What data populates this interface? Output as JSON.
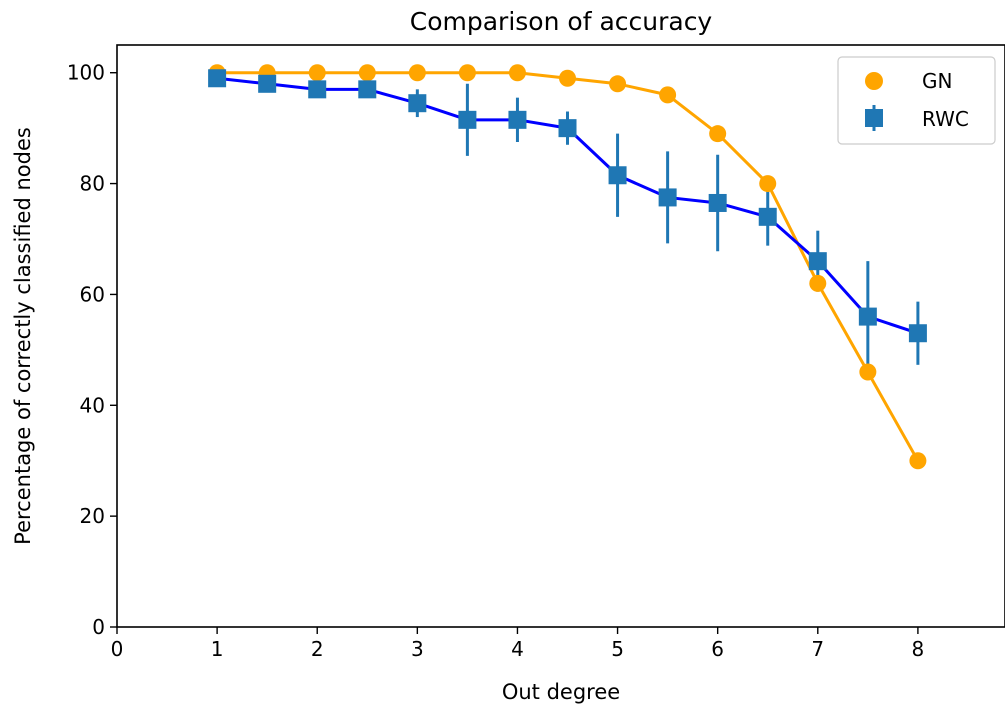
{
  "chart_data": {
    "type": "line",
    "title": "Comparison of accuracy",
    "xlabel": "Out degree",
    "ylabel": "Percentage of correctly classified nodes",
    "xlim": [
      0,
      8.87
    ],
    "ylim": [
      0,
      105
    ],
    "xticks": [
      0,
      1,
      2,
      3,
      4,
      5,
      6,
      7,
      8
    ],
    "yticks": [
      0,
      20,
      40,
      60,
      80,
      100
    ],
    "grid": false,
    "legend_position": "top-right",
    "x": [
      1,
      1.5,
      2,
      2.5,
      3,
      3.5,
      4,
      4.5,
      5,
      5.5,
      6,
      6.5,
      7,
      7.5,
      8
    ],
    "series": [
      {
        "name": "GN",
        "marker": "circle",
        "marker_color": "#ffa500",
        "line_color": "#ffa500",
        "values": [
          100,
          100,
          100,
          100,
          100,
          100,
          100,
          99,
          98,
          96,
          89,
          80,
          62,
          46,
          30
        ]
      },
      {
        "name": "RWC",
        "marker": "square",
        "marker_color": "#1f77b4",
        "line_color": "#0000ff",
        "errorbar_color": "#1f77b4",
        "values": [
          99,
          98,
          97,
          97,
          94.5,
          91.5,
          91.5,
          90,
          81.5,
          77.5,
          76.5,
          74,
          66,
          56,
          53
        ],
        "errors": [
          0.5,
          0.5,
          0.5,
          0.5,
          2.5,
          6.5,
          4,
          3,
          7.5,
          8.3,
          8.7,
          5.2,
          5.5,
          10,
          5.7
        ]
      }
    ]
  }
}
